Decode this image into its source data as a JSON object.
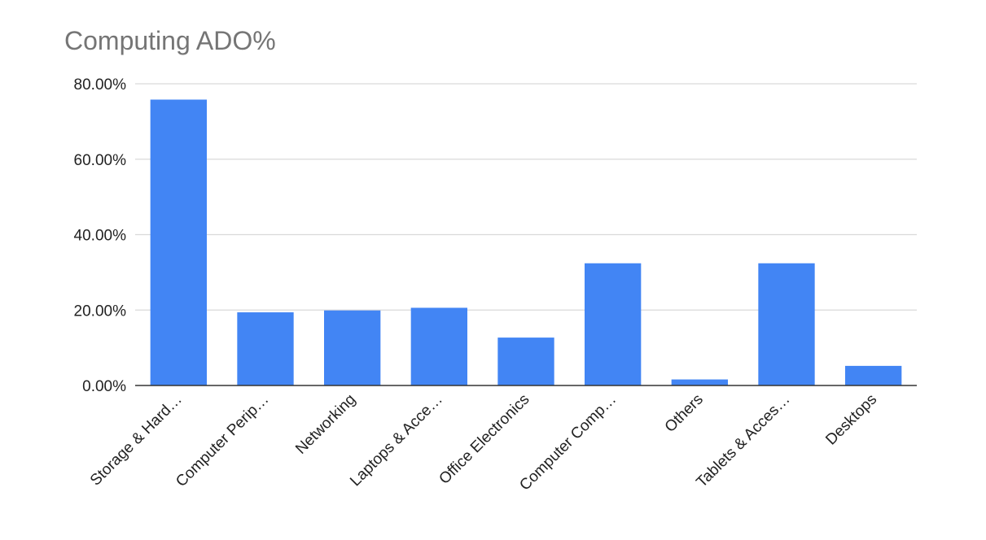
{
  "chart_data": {
    "type": "bar",
    "title": "Computing ADO%",
    "xlabel": "",
    "ylabel": "",
    "categories": [
      "Storage & Hard…",
      "Computer Perip…",
      "Networking",
      "Laptops & Acce…",
      "Office Electronics",
      "Computer Comp…",
      "Others",
      "Tablets & Acces…",
      "Desktops"
    ],
    "values": [
      75.8,
      19.4,
      19.9,
      20.6,
      12.7,
      32.4,
      1.6,
      32.4,
      5.2
    ],
    "ylim": [
      0,
      80
    ],
    "yticks": [
      0,
      20,
      40,
      60,
      80
    ],
    "ytick_labels": [
      "0.00%",
      "20.00%",
      "40.00%",
      "60.00%",
      "80.00%"
    ],
    "value_format": "percent",
    "grid": true,
    "legend": "none",
    "colors": {
      "bar": "#4285F4",
      "grid": "#d9d9d9",
      "axis": "#333333",
      "tick_text": "#222222",
      "title": "#757575"
    }
  }
}
